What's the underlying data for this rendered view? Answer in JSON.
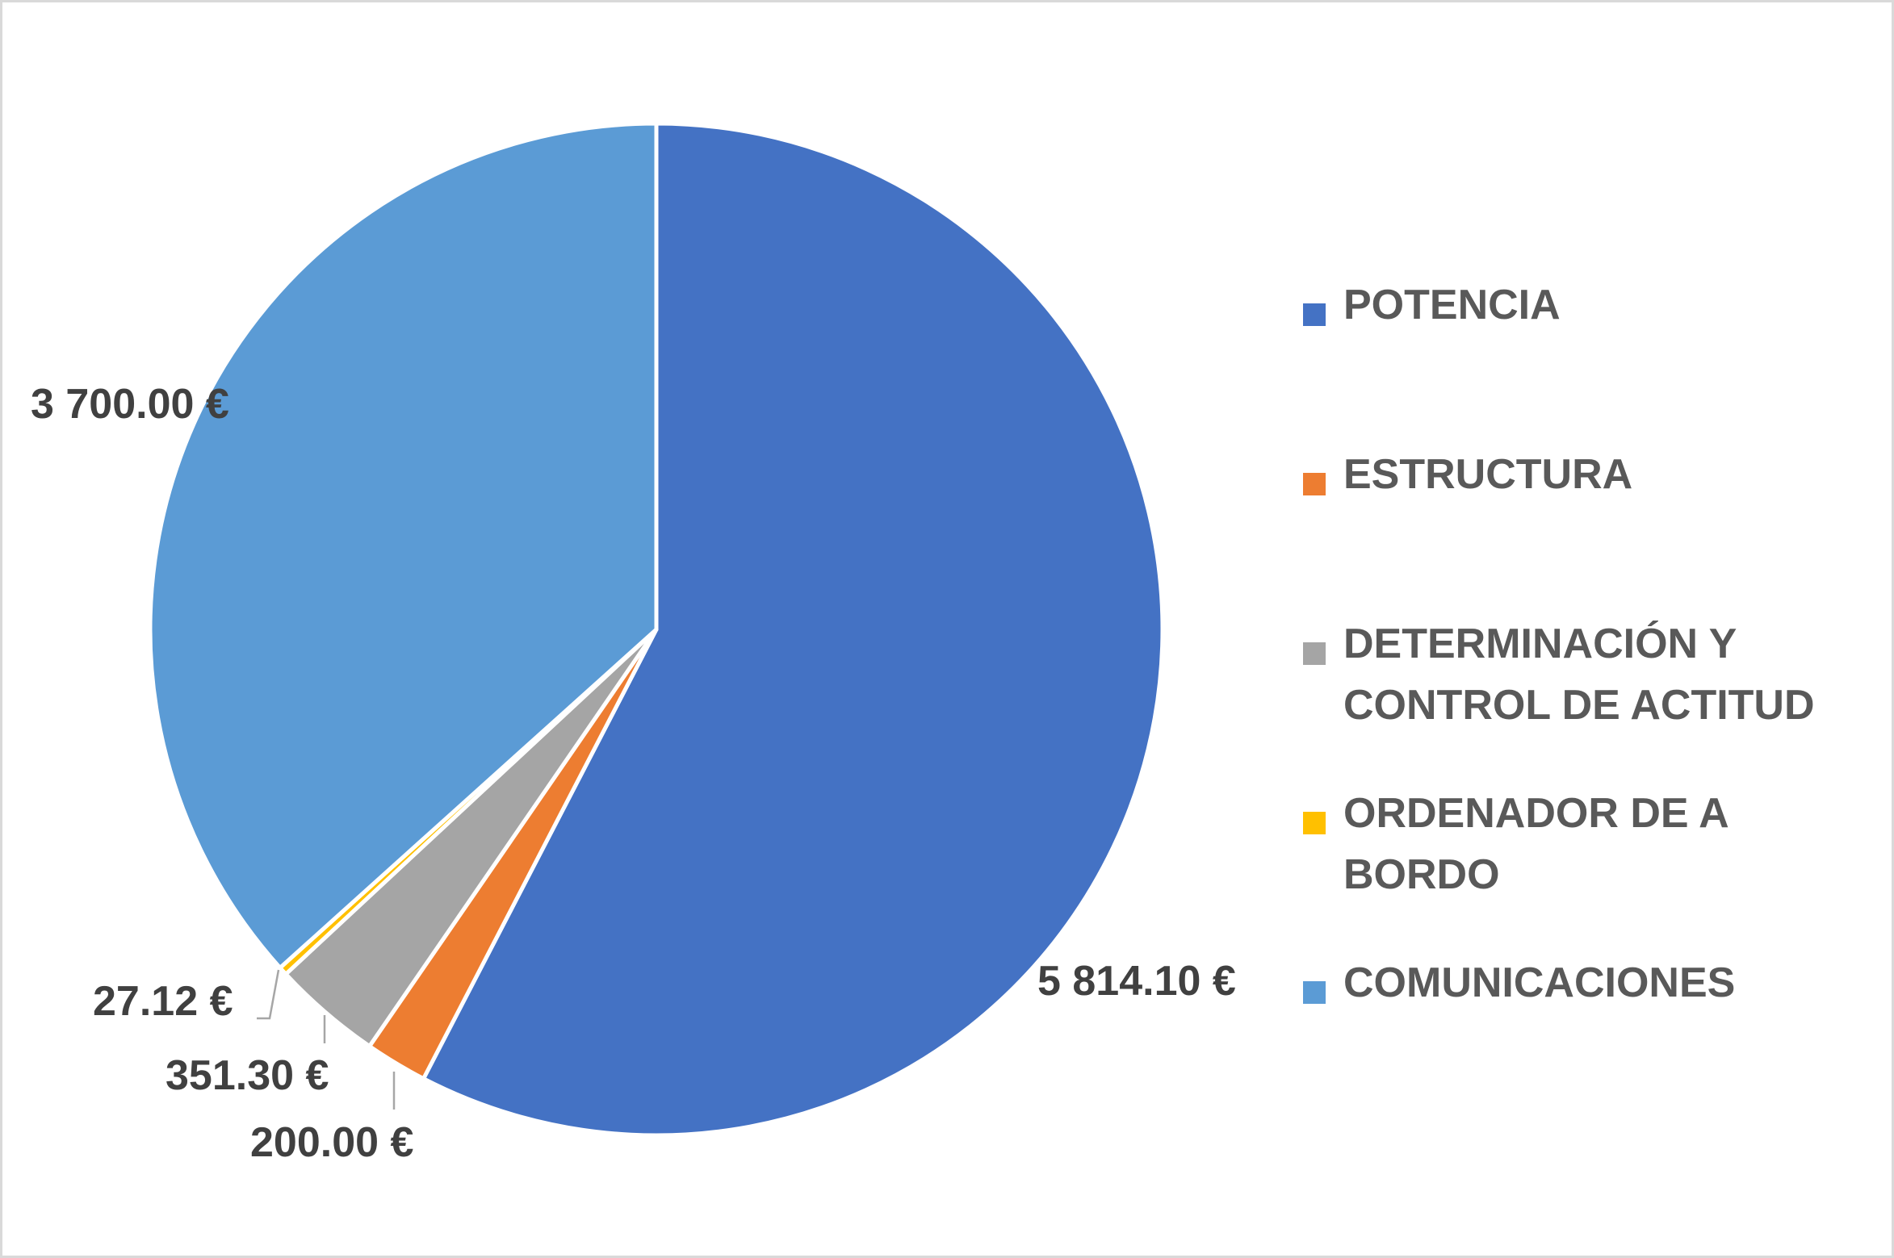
{
  "chart_data": {
    "type": "pie",
    "title": "",
    "categories": [
      "POTENCIA",
      "ESTRUCTURA",
      "DETERMINACIÓN Y CONTROL DE ACTITUD",
      "ORDENADOR DE A BORDO",
      "COMUNICACIONES"
    ],
    "values": [
      5814.1,
      200.0,
      351.3,
      27.12,
      3700.0
    ],
    "data_labels": [
      "5 814.10 €",
      "200.00 €",
      "351.30 €",
      "27.12 €",
      "3 700.00 €"
    ],
    "colors": [
      "#4472C4",
      "#ED7D31",
      "#A5A5A5",
      "#FFC000",
      "#5B9BD5"
    ],
    "start_angle": "12 o'clock",
    "direction": "clockwise",
    "legend_position": "right"
  }
}
